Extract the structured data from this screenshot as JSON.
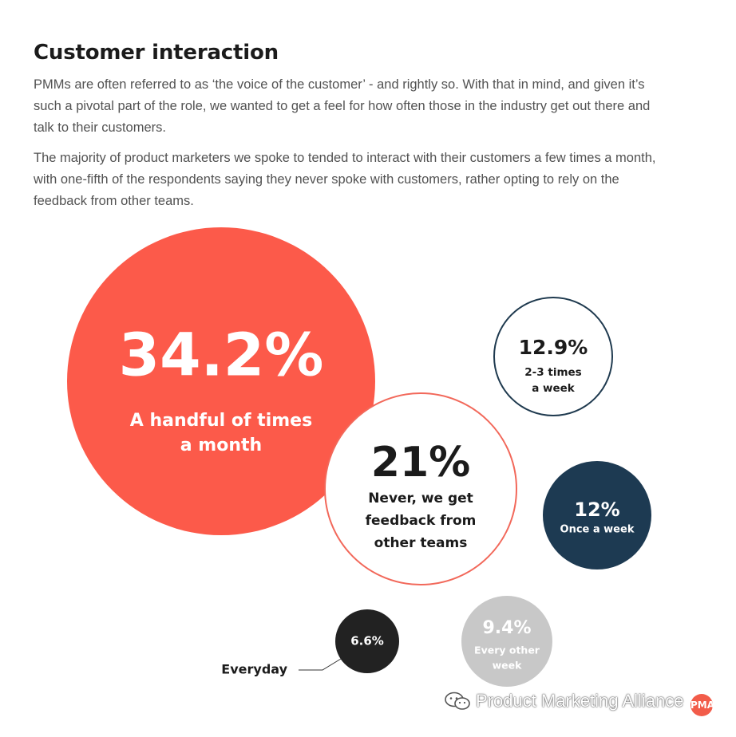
{
  "header": {
    "title": "Customer interaction"
  },
  "body": {
    "paragraph_1": "PMMs are often referred to as ‘the voice of the customer’ - and rightly so. With that in mind, and given it’s such a pivotal part of the role, we wanted to get a feel for how often those in the industry get out there and talk to their customers.",
    "paragraph_2": "The majority of product marketers we spoke to tended to interact with their customers a few times a month, with one-fifth of the respondents saying they never spoke with customers, rather opting to rely on the feedback from other teams."
  },
  "chart_data": {
    "type": "bubble",
    "title": "",
    "unit": "%",
    "series": [
      {
        "category": "A handful of times a month",
        "label_lines": [
          "A handful of times",
          "a month"
        ],
        "display": "34.2%",
        "value": 34.2,
        "style": "filled",
        "color": "#fc5a4a"
      },
      {
        "category": "Never, we get feedback from other teams",
        "label_lines": [
          "Never, we get",
          "feedback from",
          "other teams"
        ],
        "display": "21%",
        "value": 21,
        "style": "outline",
        "color": "#f2685a"
      },
      {
        "category": "2-3 times a week",
        "label_lines": [
          "2-3 times",
          "a week"
        ],
        "display": "12.9%",
        "value": 12.9,
        "style": "outline",
        "color": "#1f3a4f"
      },
      {
        "category": "Once a week",
        "label_lines": [
          "Once a week"
        ],
        "display": "12%",
        "value": 12,
        "style": "filled",
        "color": "#1d3a52"
      },
      {
        "category": "Every other week",
        "label_lines": [
          "Every other",
          "week"
        ],
        "display": "9.4%",
        "value": 9.4,
        "style": "filled",
        "color": "#c8c8c8"
      },
      {
        "category": "Everyday",
        "label_lines": [
          "Everyday"
        ],
        "display": "6.6%",
        "value": 6.6,
        "style": "filled",
        "color": "#222222",
        "external_label": true
      }
    ],
    "colors": {
      "text_dark": "#1b1b1b",
      "text_on_color": "#ffffff",
      "outline_text": "#1b1b1b"
    }
  },
  "watermark": {
    "text": "Product Marketing Alliance",
    "icon": "wechat-icon",
    "badge_text": "PMA"
  }
}
